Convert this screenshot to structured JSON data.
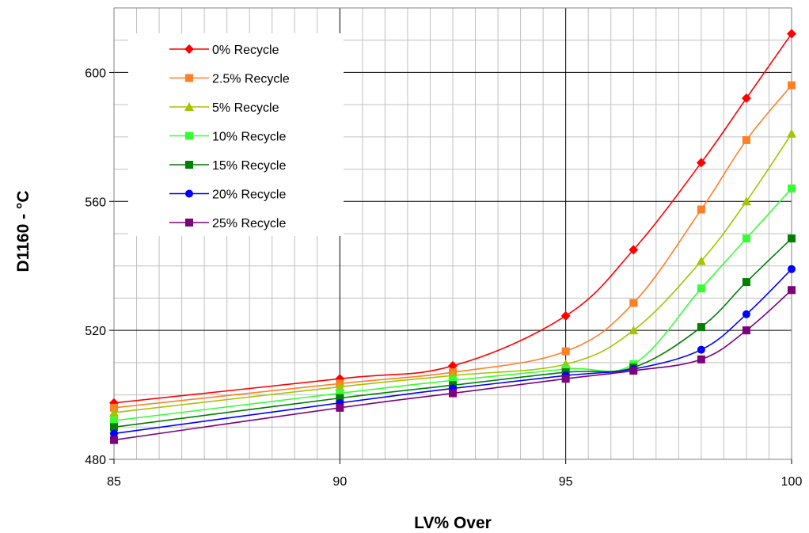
{
  "chart_data": {
    "type": "line",
    "xlabel": "LV% Over",
    "ylabel": "D1160 - °C",
    "xlim": [
      85,
      100
    ],
    "ylim": [
      480,
      620
    ],
    "x_ticks": [
      85,
      90,
      95,
      100
    ],
    "y_ticks": [
      480,
      520,
      560,
      600
    ],
    "x_minor_step": 0.5,
    "y_minor_step": 10,
    "grid": true,
    "legend_position": "top-left",
    "series": [
      {
        "name": "0% Recycle",
        "color": "#ff0000",
        "marker": "diamond",
        "x": [
          85,
          90,
          92.5,
          95,
          96.5,
          98,
          99,
          100
        ],
        "y": [
          497.5,
          505,
          509,
          524.5,
          545,
          572,
          592,
          612
        ]
      },
      {
        "name": "2.5% Recycle",
        "color": "#ff7f27",
        "marker": "square",
        "x": [
          85,
          90,
          92.5,
          95,
          96.5,
          98,
          99,
          100
        ],
        "y": [
          496,
          503.5,
          507,
          513.5,
          528.5,
          557.5,
          579,
          596
        ]
      },
      {
        "name": "5% Recycle",
        "color": "#a4c400",
        "marker": "triangle",
        "x": [
          85,
          90,
          92.5,
          95,
          96.5,
          98,
          99,
          100
        ],
        "y": [
          494.5,
          502.5,
          506,
          509.5,
          520,
          541.5,
          560,
          581
        ]
      },
      {
        "name": "10% Recycle",
        "color": "#33ff33",
        "marker": "square",
        "x": [
          85,
          90,
          92.5,
          95,
          96.5,
          98,
          99,
          100
        ],
        "y": [
          492,
          500.5,
          504.5,
          508,
          509.5,
          533,
          548.5,
          564
        ]
      },
      {
        "name": "15% Recycle",
        "color": "#007f00",
        "marker": "square",
        "x": [
          85,
          90,
          92.5,
          95,
          96.5,
          98,
          99,
          100
        ],
        "y": [
          490,
          499,
          503,
          507,
          508.5,
          521,
          535,
          548.5
        ]
      },
      {
        "name": "20% Recycle",
        "color": "#0000ff",
        "marker": "circle",
        "x": [
          85,
          90,
          92.5,
          95,
          96.5,
          98,
          99,
          100
        ],
        "y": [
          488,
          497.5,
          502,
          506,
          508,
          514,
          525,
          539
        ]
      },
      {
        "name": "25% Recycle",
        "color": "#7f007f",
        "marker": "square",
        "x": [
          85,
          90,
          92.5,
          95,
          96.5,
          98,
          99,
          100
        ],
        "y": [
          486,
          496,
          500.5,
          505,
          507.5,
          511,
          520,
          532.5
        ]
      }
    ]
  }
}
